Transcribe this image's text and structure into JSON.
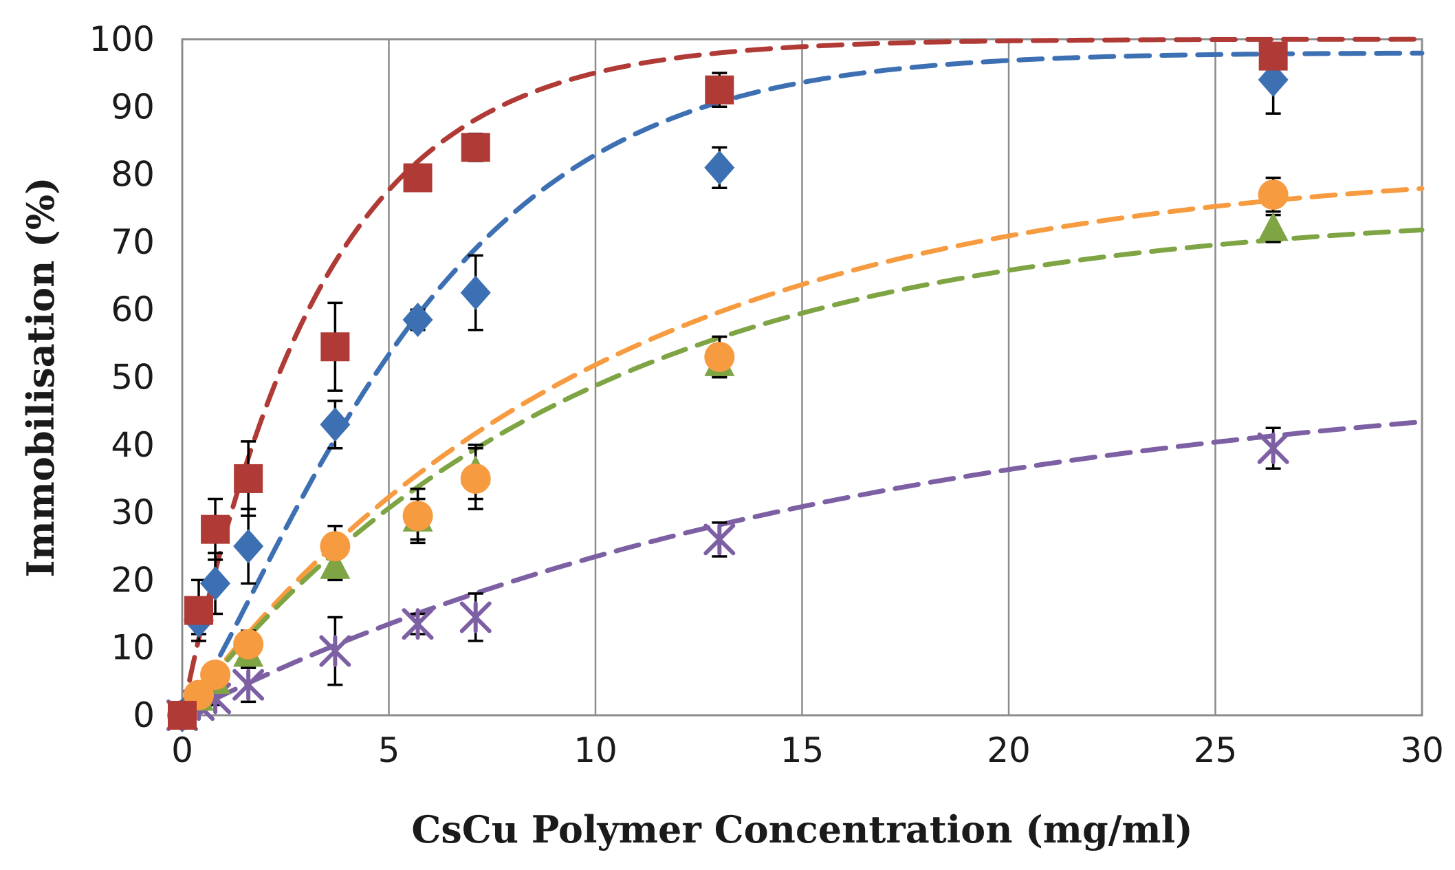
{
  "chart_data": {
    "type": "scatter",
    "xlabel": "CsCu Polymer Concentration (mg/ml)",
    "ylabel": "Immobilisation  (%)",
    "xlim": [
      0,
      30
    ],
    "ylim": [
      0,
      100
    ],
    "xticks": [
      "0",
      "5",
      "10",
      "15",
      "20",
      "25",
      "30"
    ],
    "yticks": [
      "0",
      "10",
      "20",
      "30",
      "40",
      "50",
      "60",
      "70",
      "80",
      "90",
      "100"
    ],
    "grid": "vertical gridlines at x ticks",
    "legend": "none",
    "series": [
      {
        "marker": "square",
        "color": "#b03a35",
        "points": [
          {
            "x": 0,
            "y": 0,
            "err": 0
          },
          {
            "x": 0.4,
            "y": 15.5,
            "err": 4.5
          },
          {
            "x": 0.8,
            "y": 27.5,
            "err": 4.5
          },
          {
            "x": 1.6,
            "y": 35,
            "err": 5.5
          },
          {
            "x": 3.7,
            "y": 54.5,
            "err": 6.5
          },
          {
            "x": 5.7,
            "y": 79.5,
            "err": 0
          },
          {
            "x": 7.1,
            "y": 84,
            "err": 2
          },
          {
            "x": 13,
            "y": 92.5,
            "err": 2.5
          },
          {
            "x": 26.4,
            "y": 97.5,
            "err": 0
          }
        ],
        "fit": {
          "ymax": 100,
          "k": 0.3
        }
      },
      {
        "marker": "diamond",
        "color": "#3d70b3",
        "points": [
          {
            "x": 0,
            "y": 0,
            "err": 0
          },
          {
            "x": 0.4,
            "y": 14,
            "err": 2
          },
          {
            "x": 0.8,
            "y": 19.5,
            "err": 4.5
          },
          {
            "x": 1.6,
            "y": 25,
            "err": 5.5
          },
          {
            "x": 3.7,
            "y": 43,
            "err": 3.5
          },
          {
            "x": 5.7,
            "y": 58.5,
            "err": 1.5
          },
          {
            "x": 7.1,
            "y": 62.5,
            "err": 5.5
          },
          {
            "x": 13,
            "y": 81,
            "err": 3
          },
          {
            "x": 26.4,
            "y": 94,
            "err": 5
          }
        ],
        "fit": {
          "ymax": 98,
          "k": 0.165,
          "n": 1.25
        }
      },
      {
        "marker": "circle",
        "color": "#f79b40",
        "points": [
          {
            "x": 0,
            "y": 0,
            "err": 0
          },
          {
            "x": 0.4,
            "y": 3,
            "err": 1
          },
          {
            "x": 0.8,
            "y": 6,
            "err": 1.5
          },
          {
            "x": 1.6,
            "y": 10.5,
            "err": 2
          },
          {
            "x": 3.7,
            "y": 25,
            "err": 3
          },
          {
            "x": 5.7,
            "y": 29.5,
            "err": 4
          },
          {
            "x": 7.1,
            "y": 35,
            "err": 4.5
          },
          {
            "x": 13,
            "y": 53,
            "err": 3
          },
          {
            "x": 26.4,
            "y": 77,
            "err": 2.5
          }
        ],
        "fit": {
          "ymax": 82,
          "k": 0.1
        }
      },
      {
        "marker": "triangle",
        "color": "#7ea444",
        "points": [
          {
            "x": 0,
            "y": 0,
            "err": 0
          },
          {
            "x": 0.4,
            "y": 2.5,
            "err": 1
          },
          {
            "x": 0.8,
            "y": 5,
            "err": 1.5
          },
          {
            "x": 1.6,
            "y": 9,
            "err": 2
          },
          {
            "x": 3.7,
            "y": 22,
            "err": 2
          },
          {
            "x": 5.7,
            "y": 29,
            "err": 3
          },
          {
            "x": 7.1,
            "y": 36,
            "err": 4
          },
          {
            "x": 13,
            "y": 52,
            "err": 2
          },
          {
            "x": 26.4,
            "y": 72,
            "err": 2
          }
        ],
        "fit": {
          "ymax": 75,
          "k": 0.105
        }
      },
      {
        "marker": "x-star",
        "color": "#7d5fa3",
        "points": [
          {
            "x": 0,
            "y": 0,
            "err": 0
          },
          {
            "x": 0.4,
            "y": 1.5,
            "err": 1
          },
          {
            "x": 0.8,
            "y": 2.5,
            "err": 1
          },
          {
            "x": 1.6,
            "y": 4.5,
            "err": 2.5
          },
          {
            "x": 3.7,
            "y": 9.5,
            "err": 5
          },
          {
            "x": 5.7,
            "y": 13.5,
            "err": 1.5
          },
          {
            "x": 7.1,
            "y": 14.5,
            "err": 3.5
          },
          {
            "x": 13,
            "y": 26,
            "err": 2.5
          },
          {
            "x": 26.4,
            "y": 39.5,
            "err": 3
          }
        ],
        "fit": {
          "ymax": 52,
          "k": 0.06
        }
      }
    ]
  }
}
